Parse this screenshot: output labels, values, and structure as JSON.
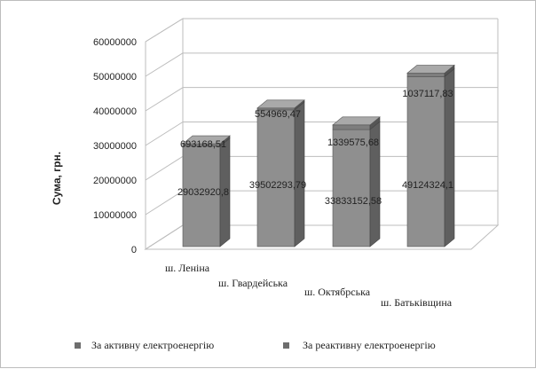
{
  "chart_data": {
    "type": "bar",
    "stacked": true,
    "three_d": true,
    "categories": [
      "ш. Леніна",
      "ш. Гвардейська",
      "ш. Октябрська",
      "ш. Батьківщина"
    ],
    "series": [
      {
        "name": "За активну електроенергію",
        "values": [
          29032920.8,
          39502293.79,
          33833152.58,
          49124324.1
        ],
        "labels": [
          "29032920,8",
          "39502293,79",
          "33833152,58",
          "49124324,1"
        ],
        "color": "#8a8a8a"
      },
      {
        "name": "За реактивну електроенергію",
        "values": [
          693168.51,
          554969.47,
          1339575.68,
          1037117.83
        ],
        "labels": [
          "693168,51",
          "554969,47",
          "1339575,68",
          "1037117,83"
        ],
        "color": "#7a7a7a"
      }
    ],
    "ylabel": "Сума, грн.",
    "ylim": [
      0,
      60000000
    ],
    "yticks": [
      "0",
      "10000000",
      "20000000",
      "30000000",
      "40000000",
      "50000000",
      "60000000"
    ],
    "grid": true,
    "legend_position": "bottom"
  }
}
